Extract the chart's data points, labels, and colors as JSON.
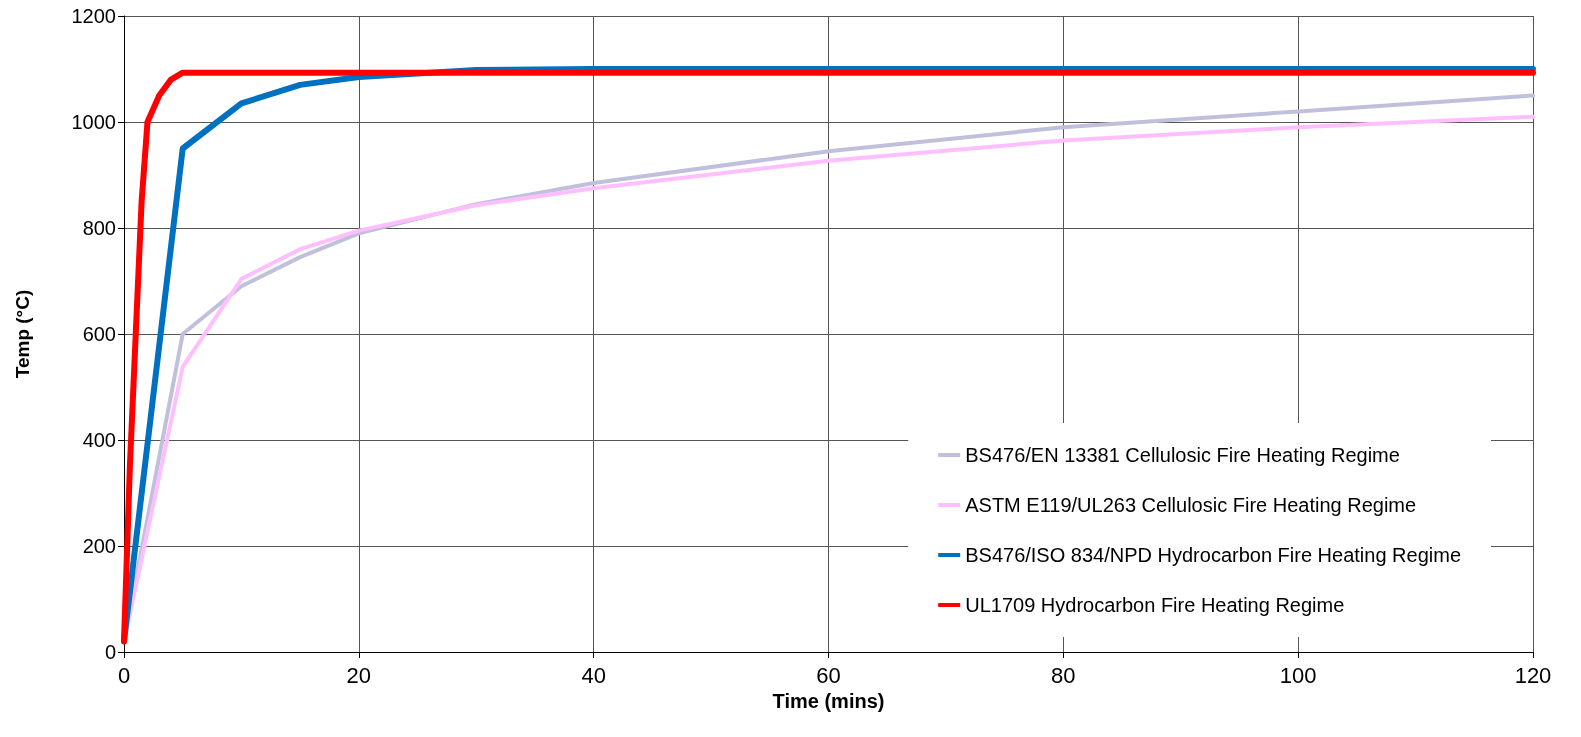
{
  "chart_data": {
    "type": "line",
    "xlabel": "Time (mins)",
    "ylabel": "Temp (°C)",
    "xlim": [
      0,
      120
    ],
    "xticks": [
      0,
      20,
      40,
      60,
      80,
      100,
      120
    ],
    "ylim": [
      0,
      1200
    ],
    "yticks": [
      0,
      200,
      400,
      600,
      800,
      1000,
      1200
    ],
    "grid": true,
    "legend": "bottom right",
    "marker": "none",
    "line_style": "solid",
    "series": [
      {
        "name": "BS476/EN 13381 Cellulosic Fire Heating Regime",
        "color": "#c0c0dc",
        "x": [
          0,
          5,
          10,
          15,
          20,
          30,
          40,
          60,
          80,
          100,
          120
        ],
        "values": [
          20,
          600,
          690,
          745,
          790,
          845,
          885,
          945,
          990,
          1020,
          1050
        ]
      },
      {
        "name": "ASTM E119/UL263 Cellulosic Fire Heating Regime",
        "color": "#ffbfff",
        "x": [
          0,
          5,
          10,
          15,
          20,
          30,
          40,
          60,
          80,
          100,
          120
        ],
        "values": [
          20,
          538,
          704,
          760,
          795,
          843,
          875,
          927,
          965,
          990,
          1010
        ]
      },
      {
        "name": "BS476/ISO 834/NPD Hydrocarbon Fire Heating Regime",
        "color": "#0070c0",
        "x": [
          0,
          5,
          10,
          15,
          20,
          30,
          40,
          120
        ],
        "values": [
          20,
          950,
          1035,
          1070,
          1085,
          1098,
          1100,
          1100
        ]
      },
      {
        "name": "UL1709 Hydrocarbon Fire Heating Regime",
        "color": "#ff0000",
        "x": [
          0,
          0.5,
          1,
          1.5,
          2,
          3,
          4,
          5,
          120
        ],
        "values": [
          20,
          350,
          600,
          850,
          1000,
          1050,
          1080,
          1093,
          1093
        ]
      }
    ]
  }
}
